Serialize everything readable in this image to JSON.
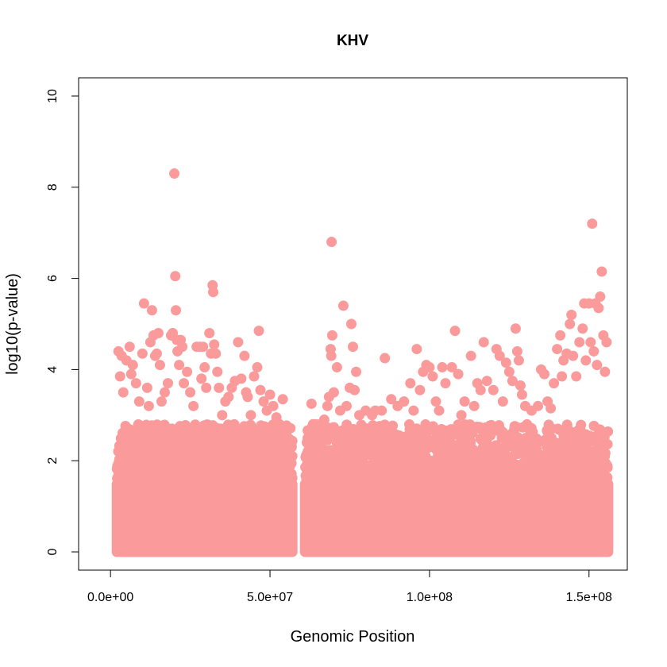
{
  "chart_data": {
    "type": "scatter",
    "title": "KHV",
    "xlabel": "Genomic Position",
    "ylabel": "log10(p-value)",
    "xlim": [
      -10000000,
      162000000
    ],
    "ylim": [
      -0.4,
      10.4
    ],
    "x_ticks": [
      0,
      50000000,
      100000000,
      150000000
    ],
    "x_tick_labels": [
      "0.0e+00",
      "5.0e+07",
      "1.0e+08",
      "1.5e+08"
    ],
    "y_ticks": [
      0,
      2,
      4,
      6,
      8,
      10
    ],
    "y_tick_labels": [
      "0",
      "2",
      "4",
      "6",
      "8",
      "10"
    ],
    "grid": false,
    "point_color": "#fa9a9a",
    "series": [
      {
        "points": [
          [
            2500000,
            4.4
          ],
          [
            3000000,
            3.85
          ],
          [
            3500000,
            4.3
          ],
          [
            4000000,
            3.5
          ],
          [
            5000000,
            4.2
          ],
          [
            6000000,
            4.5
          ],
          [
            6500000,
            3.9
          ],
          [
            7000000,
            4.1
          ],
          [
            8000000,
            3.7
          ],
          [
            9000000,
            3.3
          ],
          [
            10000000,
            4.35
          ],
          [
            10500000,
            5.45
          ],
          [
            11500000,
            3.6
          ],
          [
            12000000,
            3.2
          ],
          [
            12500000,
            4.6
          ],
          [
            13000000,
            5.3
          ],
          [
            13500000,
            4.75
          ],
          [
            14000000,
            4.3
          ],
          [
            14500000,
            4.35
          ],
          [
            15000000,
            4.8
          ],
          [
            15500000,
            4.1
          ],
          [
            16000000,
            3.3
          ],
          [
            17000000,
            3.5
          ],
          [
            18000000,
            3.7
          ],
          [
            19000000,
            4.75
          ],
          [
            19500000,
            4.8
          ],
          [
            20000000,
            8.3
          ],
          [
            20300000,
            6.05
          ],
          [
            20500000,
            5.3
          ],
          [
            20800000,
            4.65
          ],
          [
            21000000,
            4.4
          ],
          [
            21500000,
            4.1
          ],
          [
            22000000,
            4.65
          ],
          [
            22500000,
            4.5
          ],
          [
            23000000,
            3.7
          ],
          [
            24000000,
            3.95
          ],
          [
            25000000,
            3.5
          ],
          [
            26000000,
            3.2
          ],
          [
            27000000,
            4.5
          ],
          [
            28000000,
            4.5
          ],
          [
            28500000,
            3.8
          ],
          [
            29000000,
            4.5
          ],
          [
            29500000,
            4.05
          ],
          [
            30000000,
            3.6
          ],
          [
            31000000,
            4.8
          ],
          [
            31500000,
            4.35
          ],
          [
            32000000,
            5.85
          ],
          [
            32200000,
            5.7
          ],
          [
            32500000,
            4.55
          ],
          [
            33000000,
            4.35
          ],
          [
            33500000,
            3.95
          ],
          [
            34000000,
            3.6
          ],
          [
            35000000,
            3.0
          ],
          [
            36000000,
            3.3
          ],
          [
            37000000,
            3.4
          ],
          [
            38000000,
            3.6
          ],
          [
            39000000,
            3.75
          ],
          [
            40000000,
            4.6
          ],
          [
            41000000,
            3.8
          ],
          [
            42000000,
            4.3
          ],
          [
            42500000,
            3.5
          ],
          [
            43000000,
            3.4
          ],
          [
            44000000,
            3.0
          ],
          [
            45000000,
            3.85
          ],
          [
            46000000,
            4.05
          ],
          [
            46500000,
            4.85
          ],
          [
            47000000,
            3.55
          ],
          [
            48000000,
            3.3
          ],
          [
            49000000,
            3.1
          ],
          [
            50000000,
            3.45
          ],
          [
            51000000,
            3.2
          ],
          [
            52000000,
            2.95
          ],
          [
            53000000,
            2.8
          ],
          [
            54000000,
            3.35
          ],
          [
            55000000,
            2.65
          ],
          [
            56000000,
            2.3
          ],
          [
            57000000,
            2.1
          ],
          [
            63000000,
            3.25
          ],
          [
            63500000,
            2.8
          ],
          [
            64000000,
            2.55
          ],
          [
            65000000,
            2.6
          ],
          [
            67000000,
            2.9
          ],
          [
            68000000,
            3.2
          ],
          [
            68500000,
            3.4
          ],
          [
            69000000,
            4.45
          ],
          [
            69200000,
            4.3
          ],
          [
            69300000,
            6.8
          ],
          [
            69500000,
            4.75
          ],
          [
            70000000,
            3.5
          ],
          [
            71000000,
            4.05
          ],
          [
            72000000,
            3.1
          ],
          [
            73000000,
            5.4
          ],
          [
            74000000,
            3.2
          ],
          [
            75000000,
            3.6
          ],
          [
            75500000,
            5.0
          ],
          [
            76000000,
            4.5
          ],
          [
            76500000,
            3.55
          ],
          [
            77000000,
            3.95
          ],
          [
            78000000,
            3.0
          ],
          [
            80000000,
            3.1
          ],
          [
            82000000,
            3.0
          ],
          [
            83000000,
            3.1
          ],
          [
            85000000,
            3.1
          ],
          [
            86000000,
            4.25
          ],
          [
            88000000,
            3.35
          ],
          [
            90000000,
            3.2
          ],
          [
            92000000,
            3.3
          ],
          [
            94000000,
            3.7
          ],
          [
            95000000,
            3.1
          ],
          [
            96000000,
            4.45
          ],
          [
            97000000,
            3.55
          ],
          [
            98000000,
            3.95
          ],
          [
            99000000,
            4.1
          ],
          [
            100000000,
            4.05
          ],
          [
            101000000,
            3.85
          ],
          [
            102000000,
            3.3
          ],
          [
            103000000,
            3.1
          ],
          [
            104000000,
            4.05
          ],
          [
            105000000,
            3.7
          ],
          [
            107000000,
            4.05
          ],
          [
            108000000,
            4.85
          ],
          [
            109000000,
            3.9
          ],
          [
            110000000,
            3.0
          ],
          [
            111000000,
            3.3
          ],
          [
            113000000,
            4.3
          ],
          [
            114000000,
            3.2
          ],
          [
            115000000,
            3.7
          ],
          [
            116000000,
            3.55
          ],
          [
            117000000,
            4.6
          ],
          [
            118000000,
            3.75
          ],
          [
            120000000,
            3.55
          ],
          [
            121000000,
            4.45
          ],
          [
            122000000,
            4.3
          ],
          [
            123000000,
            3.3
          ],
          [
            124000000,
            4.15
          ],
          [
            125000000,
            3.95
          ],
          [
            126000000,
            3.75
          ],
          [
            127000000,
            4.9
          ],
          [
            127500000,
            4.4
          ],
          [
            128000000,
            4.2
          ],
          [
            128500000,
            3.65
          ],
          [
            129000000,
            3.45
          ],
          [
            130000000,
            3.2
          ],
          [
            132000000,
            3.1
          ],
          [
            134000000,
            3.2
          ],
          [
            135000000,
            4.0
          ],
          [
            136000000,
            3.9
          ],
          [
            137000000,
            3.3
          ],
          [
            138000000,
            3.15
          ],
          [
            139000000,
            3.7
          ],
          [
            140000000,
            4.45
          ],
          [
            141000000,
            4.75
          ],
          [
            141500000,
            3.85
          ],
          [
            142000000,
            4.2
          ],
          [
            143000000,
            4.35
          ],
          [
            144000000,
            5.0
          ],
          [
            144500000,
            5.2
          ],
          [
            145000000,
            4.3
          ],
          [
            146000000,
            3.85
          ],
          [
            147000000,
            4.6
          ],
          [
            148000000,
            4.9
          ],
          [
            148500000,
            5.45
          ],
          [
            149000000,
            4.2
          ],
          [
            150000000,
            5.45
          ],
          [
            150500000,
            4.6
          ],
          [
            151000000,
            7.2
          ],
          [
            151500000,
            4.4
          ],
          [
            152000000,
            5.45
          ],
          [
            152500000,
            4.1
          ],
          [
            153000000,
            5.35
          ],
          [
            153500000,
            5.6
          ],
          [
            154000000,
            6.15
          ],
          [
            154500000,
            4.75
          ],
          [
            155000000,
            3.95
          ],
          [
            155500000,
            4.6
          ]
        ]
      }
    ],
    "bulk_clusters": [
      {
        "x_range": [
          2000000,
          57000000
        ],
        "y_max": 2.8
      },
      {
        "x_range": [
          61000000,
          156000000
        ],
        "y_max": 2.8
      }
    ]
  }
}
